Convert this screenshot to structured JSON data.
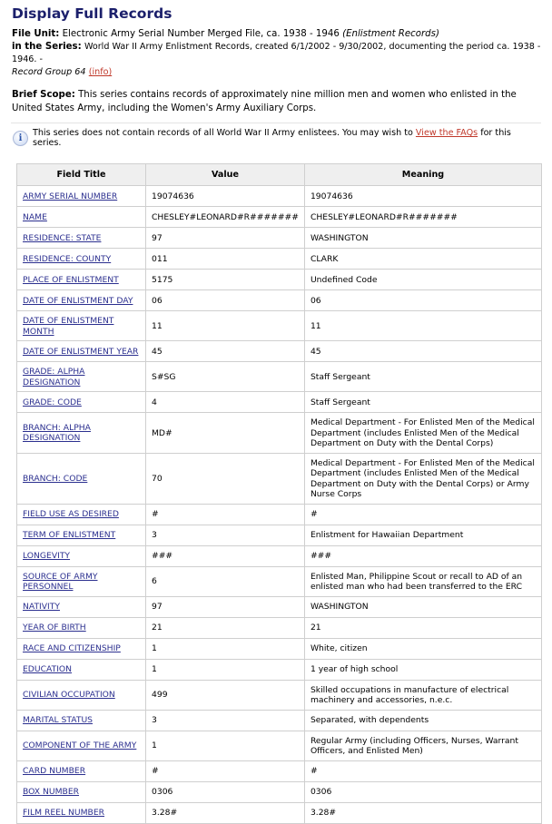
{
  "page_title": "Display Full Records",
  "file_unit": {
    "label": "File Unit:",
    "text": "Electronic Army Serial Number Merged File, ca. 1938 - 1946",
    "italic": "(Enlistment Records)"
  },
  "series": {
    "label": "in the Series:",
    "text": "World War II Army Enlistment Records, created 6/1/2002 - 9/30/2002, documenting the period ca. 1938 - 1946. -",
    "record_group": "Record Group 64",
    "info_link": "(info)"
  },
  "scope": {
    "label": "Brief Scope:",
    "text": "This series contains records of approximately nine million men and women who enlisted in the United States Army, including the Women's Army Auxiliary Corps."
  },
  "note": {
    "text_before": "This series does not contain records of all World War II Army enlistees. You may wish to",
    "link": "View the FAQs",
    "text_after": "for this series."
  },
  "table": {
    "headers": [
      "Field Title",
      "Value",
      "Meaning"
    ],
    "rows": [
      [
        "ARMY SERIAL NUMBER",
        "19074636",
        "19074636"
      ],
      [
        "NAME",
        "CHESLEY#LEONARD#R#######",
        "CHESLEY#LEONARD#R#######"
      ],
      [
        "RESIDENCE: STATE",
        "97",
        "WASHINGTON"
      ],
      [
        "RESIDENCE: COUNTY",
        "011",
        "CLARK"
      ],
      [
        "PLACE OF ENLISTMENT",
        "5175",
        "Undefined Code"
      ],
      [
        "DATE OF ENLISTMENT DAY",
        "06",
        "06"
      ],
      [
        "DATE OF ENLISTMENT MONTH",
        "11",
        "11"
      ],
      [
        "DATE OF ENLISTMENT YEAR",
        "45",
        "45"
      ],
      [
        "GRADE: ALPHA DESIGNATION",
        "S#SG",
        "Staff Sergeant"
      ],
      [
        "GRADE: CODE",
        "4",
        "Staff Sergeant"
      ],
      [
        "BRANCH: ALPHA DESIGNATION",
        "MD#",
        "Medical Department - For Enlisted Men of the Medical Department (includes Enlisted Men of the Medical Department on Duty with the Dental Corps)"
      ],
      [
        "BRANCH: CODE",
        "70",
        "Medical Department - For Enlisted Men of the Medical Department (includes Enlisted Men of the Medical Department on Duty with the Dental Corps) or Army Nurse Corps"
      ],
      [
        "FIELD USE AS DESIRED",
        "#",
        "#"
      ],
      [
        "TERM OF ENLISTMENT",
        "3",
        "Enlistment for Hawaiian Department"
      ],
      [
        "LONGEVITY",
        "###",
        "###"
      ],
      [
        "SOURCE OF ARMY PERSONNEL",
        "6",
        "Enlisted Man, Philippine Scout or recall to AD of an enlisted man who had been transferred to the ERC"
      ],
      [
        "NATIVITY",
        "97",
        "WASHINGTON"
      ],
      [
        "YEAR OF BIRTH",
        "21",
        "21"
      ],
      [
        "RACE AND CITIZENSHIP",
        "1",
        "White, citizen"
      ],
      [
        "EDUCATION",
        "1",
        "1 year of high school"
      ],
      [
        "CIVILIAN OCCUPATION",
        "499",
        "Skilled occupations in manufacture of electrical machinery and accessories, n.e.c."
      ],
      [
        "MARITAL STATUS",
        "3",
        "Separated, with dependents"
      ],
      [
        "COMPONENT OF THE ARMY",
        "1",
        "Regular Army (including Officers, Nurses, Warrant Officers, and Enlisted Men)"
      ],
      [
        "CARD NUMBER",
        "#",
        "#"
      ],
      [
        "BOX NUMBER",
        "0306",
        "0306"
      ],
      [
        "FILM REEL NUMBER",
        "3.28#",
        "3.28#"
      ]
    ]
  }
}
